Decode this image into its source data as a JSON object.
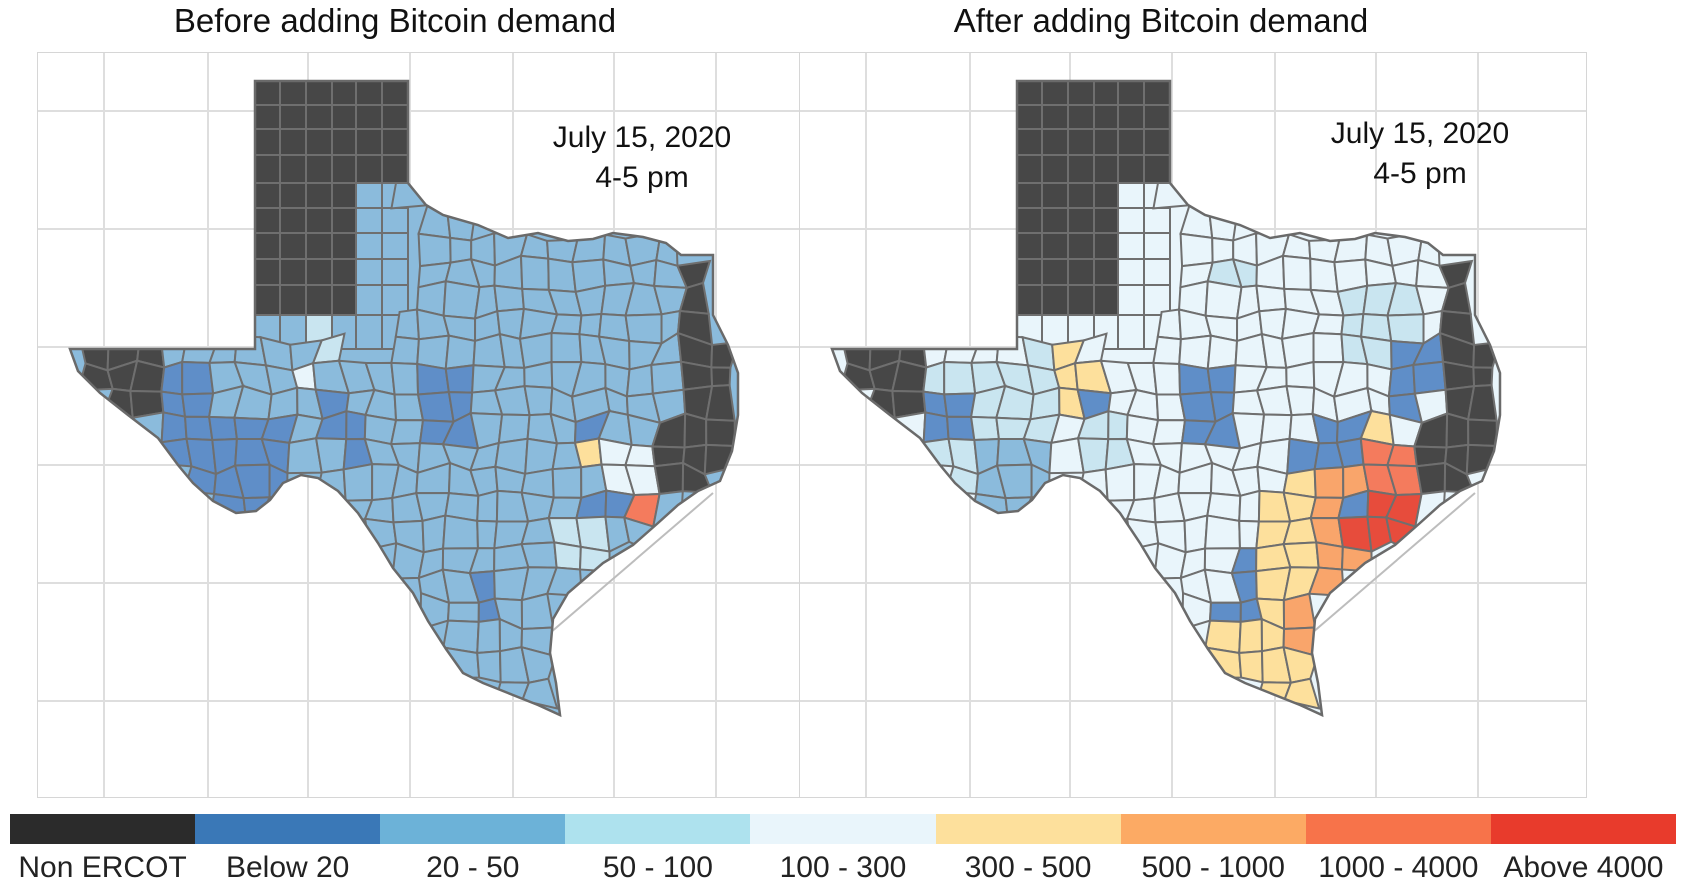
{
  "panels": [
    {
      "title": "Before adding Bitcoin demand",
      "date": "July 15, 2020",
      "time": "4-5 pm",
      "state": "before"
    },
    {
      "title": "After adding Bitcoin demand",
      "date": "July 15, 2020",
      "time": "4-5 pm",
      "state": "after"
    }
  ],
  "legend": [
    {
      "label": "Non ERCOT",
      "color": "#2b2b2b"
    },
    {
      "label": "Below 20",
      "color": "#3a78b7"
    },
    {
      "label": "20 - 50",
      "color": "#6cb2d8"
    },
    {
      "label": "50 - 100",
      "color": "#aee2ee"
    },
    {
      "label": "100 - 300",
      "color": "#e9f5fb"
    },
    {
      "label": "300 - 500",
      "color": "#fde09c"
    },
    {
      "label": "500 - 1000",
      "color": "#fcaa64"
    },
    {
      "label": "1000 - 4000",
      "color": "#f7734a"
    },
    {
      "label": "Above 4000",
      "color": "#e83b2c"
    }
  ],
  "map_colors": {
    "non_ercot": "#474747",
    "below_20": "#5f8ec8",
    "r20_50": "#8bbbdc",
    "r50_100": "#c9e5f0",
    "r100_300": "#e9f5fb",
    "r300_500": "#fde09c",
    "r500_1000": "#f9a56b",
    "r1000_4000": "#f47b5d",
    "above_4000": "#e74c3c",
    "county_border": "#6f6f6f",
    "grid": "#dedede"
  }
}
